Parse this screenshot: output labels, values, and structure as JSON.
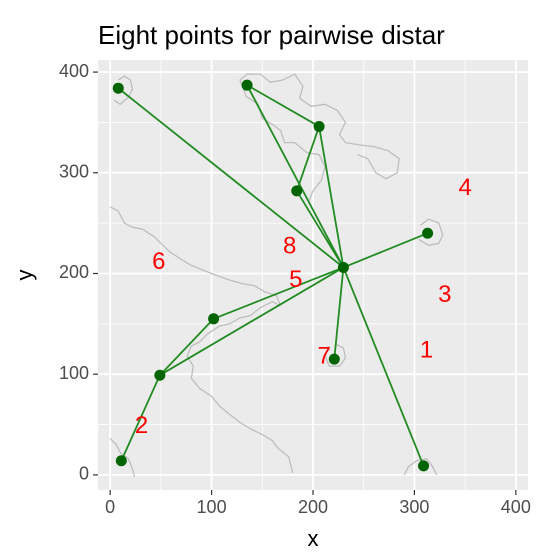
{
  "chart_data": {
    "type": "scatter",
    "title": "Eight points for pairwise distar",
    "xlabel": "x",
    "ylabel": "y",
    "xlim": [
      -12,
      412
    ],
    "ylim": [
      -15,
      412
    ],
    "xticks": [
      0,
      100,
      200,
      300,
      400
    ],
    "yticks": [
      0,
      100,
      200,
      300,
      400
    ],
    "grid": true,
    "colors": {
      "panel": "#ebebeb",
      "grid": "#ffffff",
      "points": "#006400",
      "edges": "#228b22",
      "annotations": "#ff0000",
      "background_lines": "#bebebe"
    },
    "points": [
      {
        "x": 8,
        "y": 384
      },
      {
        "x": 135,
        "y": 387
      },
      {
        "x": 206,
        "y": 346
      },
      {
        "x": 184,
        "y": 282
      },
      {
        "x": 313,
        "y": 240
      },
      {
        "x": 230,
        "y": 206
      },
      {
        "x": 102,
        "y": 155
      },
      {
        "x": 221,
        "y": 115
      },
      {
        "x": 49,
        "y": 99
      },
      {
        "x": 11,
        "y": 14
      },
      {
        "x": 309,
        "y": 9
      }
    ],
    "edges": [
      [
        0,
        5
      ],
      [
        1,
        5
      ],
      [
        1,
        2
      ],
      [
        2,
        3
      ],
      [
        2,
        5
      ],
      [
        3,
        5
      ],
      [
        4,
        5
      ],
      [
        5,
        7
      ],
      [
        5,
        10
      ],
      [
        5,
        6
      ],
      [
        5,
        8
      ],
      [
        6,
        8
      ],
      [
        8,
        9
      ]
    ],
    "annotations": [
      {
        "text": "4",
        "x": 350,
        "y": 284
      },
      {
        "text": "8",
        "x": 177,
        "y": 226
      },
      {
        "text": "6",
        "x": 48,
        "y": 211
      },
      {
        "text": "5",
        "x": 183,
        "y": 193
      },
      {
        "text": "3",
        "x": 330,
        "y": 178
      },
      {
        "text": "1",
        "x": 312,
        "y": 123
      },
      {
        "text": "7",
        "x": 211,
        "y": 117
      },
      {
        "text": "2",
        "x": 31,
        "y": 48
      }
    ],
    "background_paths": [
      [
        [
          8,
          392
        ],
        [
          14,
          396
        ],
        [
          20,
          392
        ],
        [
          22,
          383
        ],
        [
          18,
          375
        ],
        [
          10,
          368
        ],
        [
          4,
          372
        ]
      ],
      [
        [
          128,
          392
        ],
        [
          135,
          398
        ],
        [
          148,
          398
        ],
        [
          158,
          390
        ],
        [
          170,
          392
        ],
        [
          182,
          398
        ],
        [
          190,
          386
        ],
        [
          187,
          374
        ],
        [
          198,
          366
        ],
        [
          212,
          368
        ],
        [
          224,
          362
        ],
        [
          232,
          350
        ],
        [
          226,
          338
        ],
        [
          232,
          330
        ],
        [
          244,
          328
        ],
        [
          260,
          326
        ],
        [
          274,
          322
        ],
        [
          285,
          314
        ],
        [
          283,
          300
        ],
        [
          272,
          294
        ],
        [
          262,
          300
        ],
        [
          254,
          314
        ],
        [
          244,
          318
        ]
      ],
      [
        [
          128,
          392
        ],
        [
          134,
          376
        ],
        [
          146,
          368
        ],
        [
          150,
          354
        ],
        [
          160,
          348
        ],
        [
          168,
          342
        ],
        [
          172,
          330
        ],
        [
          182,
          330
        ],
        [
          194,
          320
        ],
        [
          206,
          318
        ],
        [
          212,
          306
        ],
        [
          208,
          292
        ],
        [
          200,
          282
        ],
        [
          196,
          272
        ]
      ],
      [
        [
          0,
          266
        ],
        [
          8,
          262
        ],
        [
          14,
          250
        ],
        [
          22,
          246
        ],
        [
          32,
          244
        ],
        [
          44,
          236
        ],
        [
          58,
          222
        ],
        [
          70,
          214
        ],
        [
          80,
          208
        ],
        [
          90,
          204
        ],
        [
          100,
          200
        ],
        [
          116,
          194
        ],
        [
          130,
          190
        ],
        [
          142,
          188
        ],
        [
          152,
          182
        ],
        [
          164,
          178
        ],
        [
          168,
          168
        ]
      ],
      [
        [
          168,
          168
        ],
        [
          160,
          172
        ],
        [
          148,
          166
        ],
        [
          138,
          158
        ],
        [
          128,
          156
        ],
        [
          118,
          150
        ],
        [
          108,
          148
        ],
        [
          96,
          140
        ],
        [
          88,
          132
        ],
        [
          80,
          128
        ],
        [
          76,
          118
        ],
        [
          82,
          108
        ],
        [
          80,
          96
        ],
        [
          88,
          86
        ],
        [
          100,
          78
        ],
        [
          108,
          68
        ],
        [
          118,
          60
        ],
        [
          128,
          52
        ],
        [
          138,
          46
        ],
        [
          150,
          40
        ],
        [
          160,
          34
        ],
        [
          166,
          26
        ],
        [
          176,
          18
        ],
        [
          180,
          2
        ]
      ],
      [
        [
          216,
          128
        ],
        [
          212,
          118
        ],
        [
          216,
          108
        ],
        [
          226,
          108
        ],
        [
          232,
          116
        ],
        [
          230,
          126
        ],
        [
          222,
          130
        ]
      ],
      [
        [
          306,
          248
        ],
        [
          314,
          254
        ],
        [
          324,
          250
        ],
        [
          328,
          238
        ],
        [
          324,
          230
        ],
        [
          314,
          228
        ],
        [
          304,
          234
        ]
      ],
      [
        [
          0,
          36
        ],
        [
          6,
          30
        ],
        [
          10,
          22
        ],
        [
          18,
          16
        ],
        [
          22,
          6
        ],
        [
          24,
          -2
        ]
      ],
      [
        [
          290,
          0
        ],
        [
          294,
          8
        ],
        [
          302,
          14
        ],
        [
          312,
          16
        ],
        [
          318,
          8
        ],
        [
          322,
          0
        ]
      ]
    ]
  }
}
